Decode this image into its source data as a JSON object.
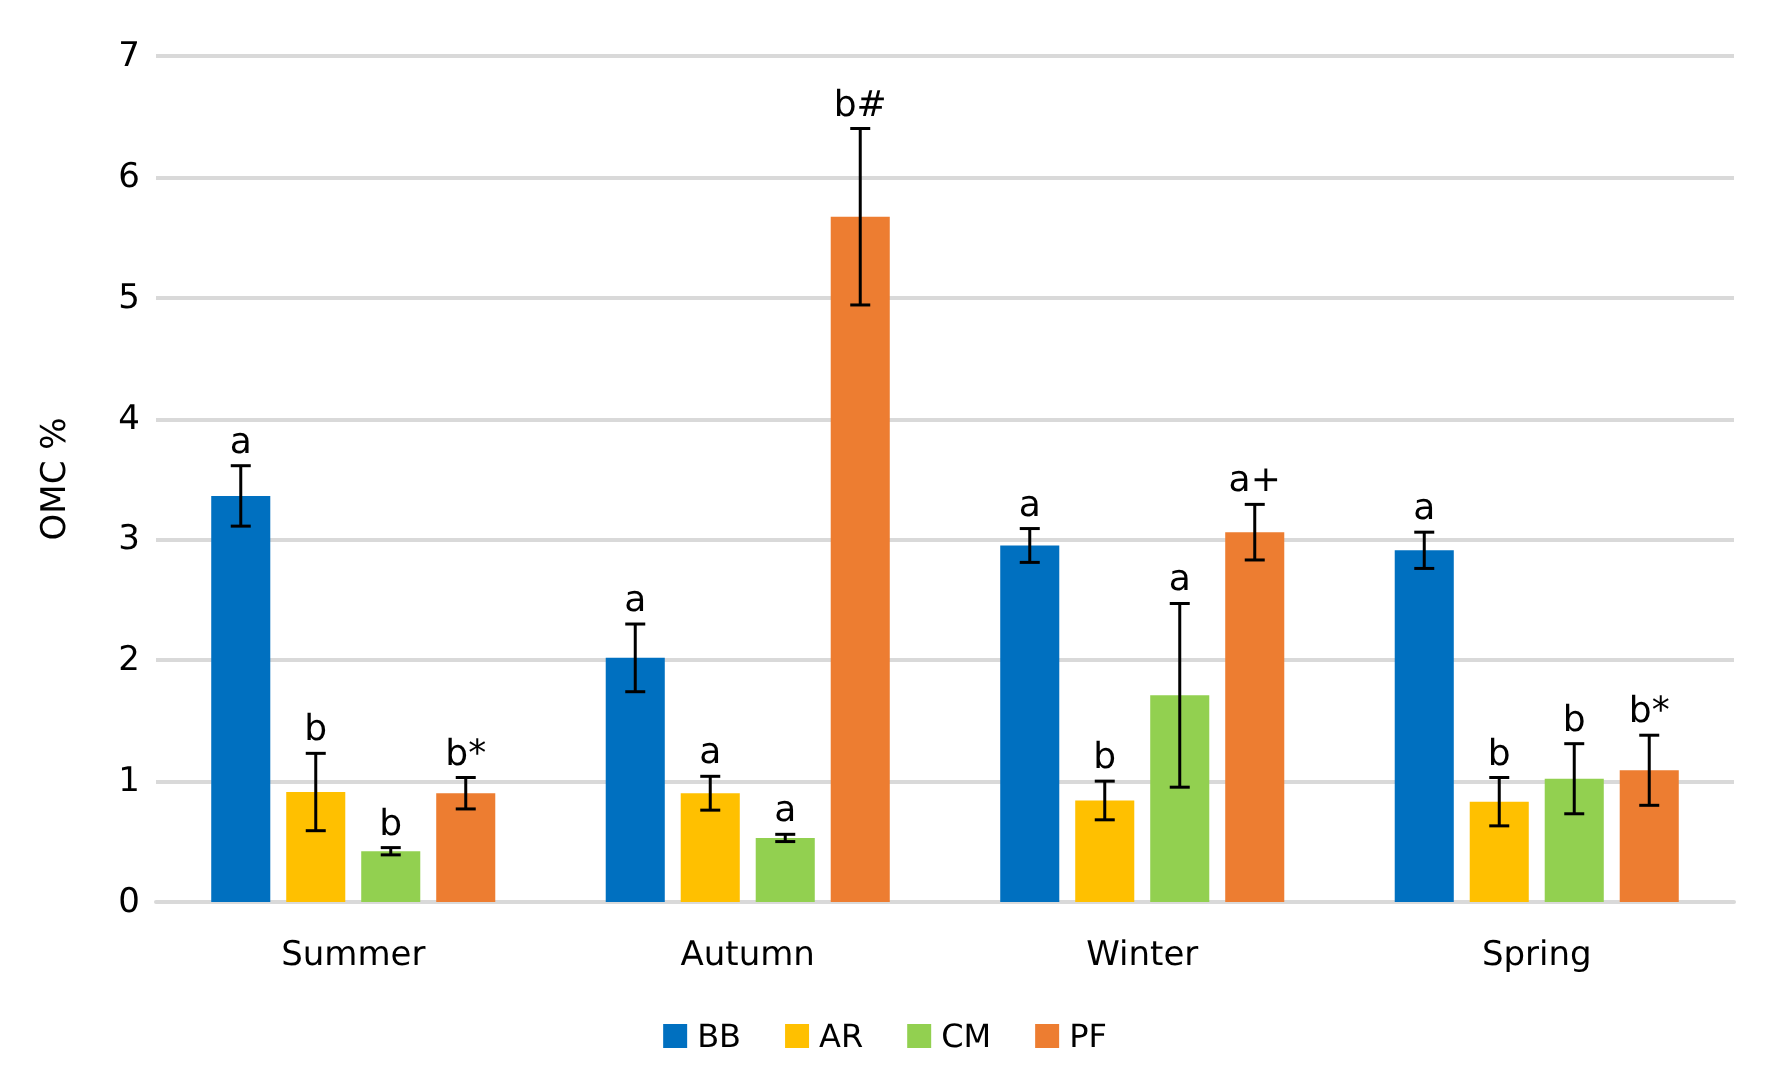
{
  "chart_data": {
    "type": "bar",
    "ylabel": "OMC %",
    "categories": [
      "Summer",
      "Autumn",
      "Winter",
      "Spring"
    ],
    "ylim": [
      0,
      7
    ],
    "yticks": [
      0,
      1,
      2,
      3,
      4,
      5,
      6,
      7
    ],
    "grid": "y",
    "legend": "bottom",
    "series": [
      {
        "name": "BB",
        "color": "#0070c0",
        "values": [
          3.36,
          2.02,
          2.95,
          2.91
        ],
        "errors": [
          0.25,
          0.28,
          0.14,
          0.15
        ],
        "value_labels": [
          "a",
          "a",
          "a",
          "a"
        ]
      },
      {
        "name": "AR",
        "color": "#ffc000",
        "values": [
          0.91,
          0.9,
          0.84,
          0.83
        ],
        "errors": [
          0.32,
          0.14,
          0.16,
          0.2
        ],
        "value_labels": [
          "b",
          "a",
          "b",
          "b"
        ]
      },
      {
        "name": "CM",
        "color": "#92d050",
        "values": [
          0.42,
          0.53,
          1.71,
          1.02
        ],
        "errors": [
          0.03,
          0.03,
          0.76,
          0.29
        ],
        "value_labels": [
          "b",
          "a",
          "a",
          "b"
        ]
      },
      {
        "name": "PF",
        "color": "#ed7d31",
        "values": [
          0.9,
          5.67,
          3.06,
          1.09
        ],
        "errors": [
          0.13,
          0.73,
          0.23,
          0.29
        ],
        "value_labels": [
          "b*",
          "b#",
          "a+",
          "b*"
        ]
      }
    ]
  }
}
